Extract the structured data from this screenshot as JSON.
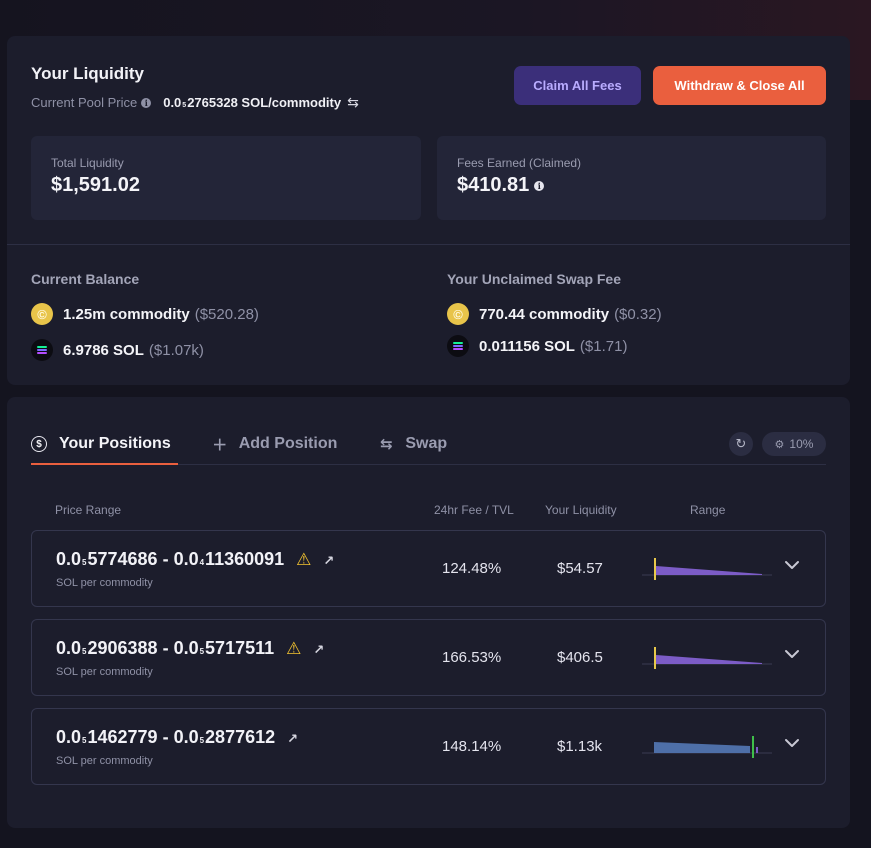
{
  "liquidity": {
    "title": "Your Liquidity",
    "pool_price_label": "Current Pool Price",
    "pool_price_prefix": "0.0",
    "pool_price_zeros": "5",
    "pool_price_digits": "2765328 SOL/commodity",
    "claim_button": "Claim All Fees",
    "withdraw_button": "Withdraw & Close All",
    "total_label": "Total Liquidity",
    "total_value": "$1,591.02",
    "fees_label": "Fees Earned (Claimed)",
    "fees_value": "$410.81",
    "balance_title": "Current Balance",
    "balance": [
      {
        "icon": "commodity-token-icon",
        "amount": "1.25m commodity",
        "usd": "($520.28)"
      },
      {
        "icon": "sol-token-icon",
        "amount": "6.9786 SOL",
        "usd": "($1.07k)"
      }
    ],
    "unclaimed_title": "Your Unclaimed Swap Fee",
    "unclaimed": [
      {
        "icon": "commodity-token-icon",
        "amount": "770.44 commodity",
        "usd": "($0.32)"
      },
      {
        "icon": "sol-token-icon",
        "amount": "0.011156 SOL",
        "usd": "($1.71)"
      }
    ]
  },
  "positions": {
    "tabs": [
      {
        "label": "Your Positions",
        "icon": "dollar-circle-icon"
      },
      {
        "label": "Add Position",
        "icon": "plus-icon"
      },
      {
        "label": "Swap",
        "icon": "swap-arrows-icon"
      }
    ],
    "slippage": "10%",
    "headers": {
      "price_range": "Price Range",
      "fee_tvl": "24hr Fee / TVL",
      "liquidity": "Your Liquidity",
      "range": "Range"
    },
    "rows": [
      {
        "lo_prefix": "0.0",
        "lo_zeros": "5",
        "lo_digits": "5774686",
        "hi_prefix": "0.0",
        "hi_zeros": "4",
        "hi_digits": "11360091",
        "unit": "SOL per commodity",
        "fee_tvl": "124.48%",
        "liquidity": "$54.57",
        "warning": true,
        "bar_color": "#7c5cc7",
        "marker_color": "#e8c84a",
        "marker_pos": 0.1,
        "in_range": false
      },
      {
        "lo_prefix": "0.0",
        "lo_zeros": "5",
        "lo_digits": "2906388",
        "hi_prefix": "0.0",
        "hi_zeros": "5",
        "hi_digits": "5717511",
        "unit": "SOL per commodity",
        "fee_tvl": "166.53%",
        "liquidity": "$406.5",
        "warning": true,
        "bar_color": "#7c5cc7",
        "marker_color": "#e8c84a",
        "marker_pos": 0.1,
        "in_range": false
      },
      {
        "lo_prefix": "0.0",
        "lo_zeros": "5",
        "lo_digits": "1462779",
        "hi_prefix": "0.0",
        "hi_zeros": "5",
        "hi_digits": "2877612",
        "unit": "SOL per commodity",
        "fee_tvl": "148.14%",
        "liquidity": "$1.13k",
        "warning": false,
        "bar_color": "#4e6fa8",
        "marker_color": "#3fbf4a",
        "marker_pos": 0.85,
        "in_range": true
      }
    ]
  }
}
